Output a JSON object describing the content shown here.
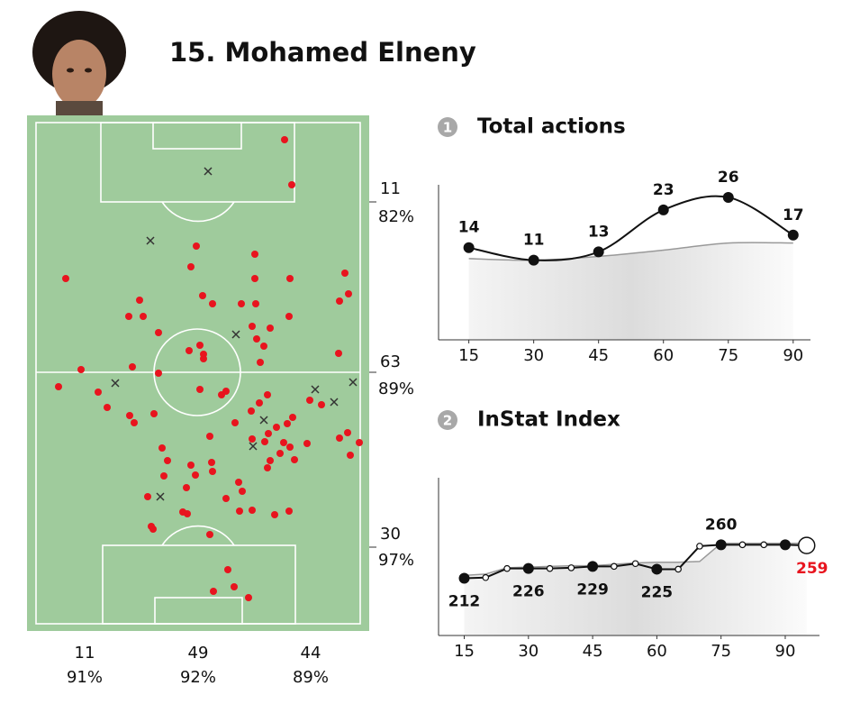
{
  "header": {
    "title": "15. Mohamed Elneny"
  },
  "zones": {
    "side": [
      {
        "count": 11,
        "pct": "82%"
      },
      {
        "count": 63,
        "pct": "89%"
      },
      {
        "count": 30,
        "pct": "97%"
      }
    ],
    "bottom": [
      {
        "count": 11,
        "pct": "91%"
      },
      {
        "count": 49,
        "pct": "92%"
      },
      {
        "count": 44,
        "pct": "89%"
      }
    ]
  },
  "chart_data": [
    {
      "type": "pitch",
      "xlim": [
        0,
        380
      ],
      "ylim": [
        0,
        572
      ],
      "series": [
        {
          "marker": "dot",
          "color": "#e8141e",
          "x": [
            286,
            294,
            43,
            188,
            253,
            182,
            253,
            292,
            353,
            357,
            347,
            125,
            113,
            129,
            195,
            206,
            238,
            254,
            291,
            146,
            250,
            270,
            255,
            263,
            180,
            192,
            196,
            196,
            346,
            259,
            117,
            146,
            60,
            35,
            79,
            192,
            216,
            221,
            267,
            258,
            314,
            327,
            89,
            114,
            119,
            141,
            249,
            231,
            289,
            295,
            277,
            268,
            264,
            250,
            203,
            285,
            311,
            347,
            356,
            369,
            359,
            150,
            156,
            152,
            182,
            205,
            206,
            187,
            292,
            281,
            270,
            267,
            297,
            235,
            239,
            177,
            221,
            134,
            236,
            250,
            275,
            291,
            173,
            178,
            138,
            140,
            203,
            223,
            230,
            207,
            246
          ],
          "y": [
            27,
            77,
            181,
            145,
            154,
            168,
            181,
            181,
            175,
            198,
            206,
            205,
            223,
            223,
            200,
            209,
            209,
            209,
            223,
            241,
            234,
            236,
            248,
            256,
            261,
            255,
            265,
            270,
            264,
            274,
            279,
            286,
            282,
            301,
            307,
            304,
            310,
            306,
            310,
            319,
            316,
            321,
            324,
            333,
            341,
            331,
            328,
            341,
            342,
            335,
            346,
            353,
            362,
            359,
            356,
            363,
            364,
            358,
            352,
            363,
            377,
            369,
            383,
            400,
            388,
            385,
            395,
            399,
            368,
            375,
            383,
            391,
            382,
            407,
            417,
            413,
            425,
            423,
            439,
            438,
            443,
            439,
            440,
            442,
            456,
            459,
            465,
            504,
            523,
            528,
            535
          ]
        },
        {
          "marker": "cross",
          "color": "#333333",
          "x": [
            201,
            137,
            232,
            98,
            320,
            362,
            341,
            263,
            251,
            148
          ],
          "y": [
            62,
            139,
            243,
            297,
            304,
            296,
            318,
            338,
            367,
            423
          ]
        }
      ]
    },
    {
      "type": "line",
      "number": "1",
      "title": "Total actions",
      "smooth": true,
      "x": [
        15,
        30,
        45,
        60,
        75,
        90
      ],
      "xlim": [
        8,
        94
      ],
      "ylim": [
        -8,
        29
      ],
      "xticks": [
        15,
        30,
        45,
        60,
        75,
        90
      ],
      "series": [
        {
          "color": "#111111",
          "values": [
            14,
            11,
            13,
            23,
            26,
            17
          ],
          "labels": true
        },
        {
          "color": "#999999",
          "values": [
            11.4,
            11,
            11.9,
            13.4,
            15.1,
            15.1
          ],
          "area": true
        }
      ]
    },
    {
      "type": "line",
      "number": "2",
      "title": "InStat Index",
      "smooth": false,
      "x": [
        15,
        20,
        25,
        30,
        35,
        40,
        45,
        50,
        55,
        60,
        65,
        70,
        75,
        80,
        85,
        90,
        95
      ],
      "xlim": [
        9,
        98
      ],
      "ylim": [
        130,
        356
      ],
      "xticks": [
        15,
        30,
        45,
        60,
        75,
        90
      ],
      "series": [
        {
          "color": "#111111",
          "values": [
            212,
            213,
            226,
            226,
            226,
            227,
            229,
            229,
            233,
            225,
            225,
            258,
            260,
            260,
            260,
            260,
            259
          ],
          "labels": true,
          "highlight_color": "#e8141e"
        },
        {
          "color": "#999999",
          "values": [
            216,
            218,
            227,
            228,
            229,
            230,
            230,
            232,
            234,
            235,
            235,
            236,
            262,
            262,
            262,
            262,
            262
          ],
          "area": true
        }
      ]
    }
  ]
}
